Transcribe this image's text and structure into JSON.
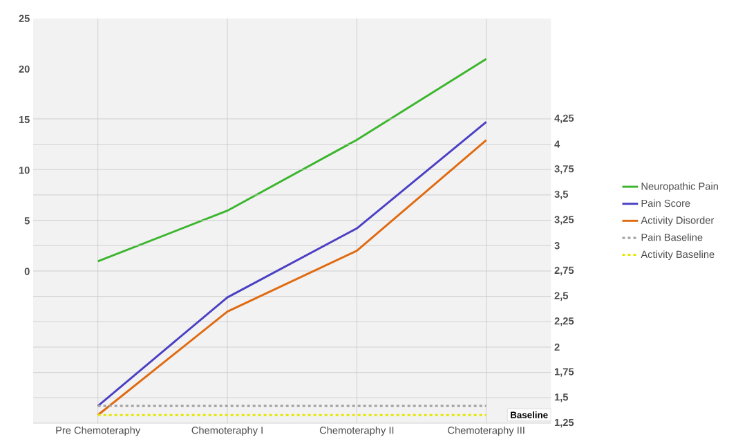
{
  "chart_data": {
    "type": "line",
    "categories": [
      "Pre Chemoteraphy",
      "Chemoteraphy I",
      "Chemoteraphy II",
      "Chemoteraphy III"
    ],
    "series": [
      {
        "name": "Neuropathic Pain",
        "color": "#3cb52e",
        "values": [
          1,
          6,
          13,
          21
        ]
      },
      {
        "name": "Pain Score",
        "color": "#4b3fc4",
        "axis": "y2",
        "values": [
          1.42,
          2.49,
          3.17,
          4.22
        ]
      },
      {
        "name": "Activity Disorder",
        "color": "#e06a10",
        "axis": "y2",
        "values": [
          1.33,
          2.35,
          2.95,
          4.04
        ]
      },
      {
        "name": "Pain Baseline",
        "color": "#a0a0a0",
        "axis": "y2",
        "line_style": "dashed",
        "values": [
          1.42,
          1.42,
          1.42,
          1.42
        ]
      },
      {
        "name": "Activity Baseline",
        "color": "#e6e600",
        "axis": "y2",
        "line_style": "dashed",
        "values": [
          1.33,
          1.33,
          1.33,
          1.33
        ]
      }
    ],
    "ylim": [
      -15,
      25
    ],
    "yticks": [
      0,
      5,
      10,
      15,
      20,
      25
    ],
    "y2lim": [
      1.25,
      5.24
    ],
    "y2ticks": [
      {
        "value": 1.25,
        "label": "1,25"
      },
      {
        "value": 1.5,
        "label": "1,5"
      },
      {
        "value": 1.75,
        "label": "1,75"
      },
      {
        "value": 2,
        "label": "2"
      },
      {
        "value": 2.25,
        "label": "2,25"
      },
      {
        "value": 2.5,
        "label": "2,5"
      },
      {
        "value": 2.75,
        "label": "2,75"
      },
      {
        "value": 3,
        "label": "3"
      },
      {
        "value": 3.25,
        "label": "3,25"
      },
      {
        "value": 3.5,
        "label": "3,5"
      },
      {
        "value": 3.75,
        "label": "3,75"
      },
      {
        "value": 4,
        "label": "4"
      },
      {
        "value": 4.25,
        "label": "4,25"
      }
    ],
    "annotations": [
      "Baseline"
    ],
    "grid": true,
    "legend": "right",
    "marker": "none",
    "line_style": "solid"
  }
}
